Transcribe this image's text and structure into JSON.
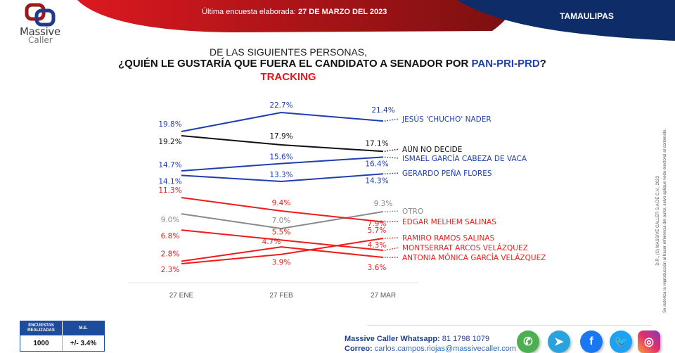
{
  "header": {
    "brand_line1": "Massive",
    "brand_line2": "Caller",
    "date_label": "Última encuesta elaborada:",
    "date_value": "27 DE MARZO DEL 2023",
    "state": "TAMAULIPAS"
  },
  "title": {
    "line1": "DE LAS SIGUIENTES  PERSONAS,",
    "line2": "¿QUIÉN LE GUSTARÍA QUE FUERA EL CANDIDATO  A SENADOR POR ",
    "party": "PAN-PRI-PRD",
    "qmark": "?",
    "line3": "TRACKING"
  },
  "colors": {
    "blue": "#1f3fb0",
    "black": "#111111",
    "gray": "#8a8a8a",
    "red": "#f01c1c",
    "banner_red": "#c8141c",
    "banner_blue": "#0e2d68"
  },
  "chart_data": {
    "type": "line",
    "title": "TRACKING",
    "categories": [
      "27 ENE",
      "27 FEB",
      "27 MAR"
    ],
    "ylabel": "",
    "xlabel": "",
    "ylim": [
      0,
      25
    ],
    "grid": false,
    "legend": "right (line-end labels)",
    "series": [
      {
        "name": "JESÚS 'CHUCHO' NADER",
        "color": "blue",
        "values": [
          19.8,
          22.7,
          21.4
        ],
        "labels": [
          "19.8%",
          "22.7%",
          "21.4%"
        ]
      },
      {
        "name": "AÚN NO DECIDE",
        "color": "black",
        "values": [
          19.2,
          17.9,
          17.1
        ],
        "labels": [
          "19.2%",
          "17.9%",
          "17.1%"
        ]
      },
      {
        "name": "ISMAEL GARCÍA CABEZA DE VACA",
        "color": "blue",
        "values": [
          14.7,
          15.6,
          16.4
        ],
        "labels": [
          "14.7%",
          "15.6%",
          "16.4%"
        ]
      },
      {
        "name": "GERARDO PEÑA FLORES",
        "color": "blue",
        "values": [
          14.1,
          13.3,
          14.3
        ],
        "labels": [
          "14.1%",
          "13.3%",
          "14.3%"
        ]
      },
      {
        "name": "OTRO",
        "color": "gray",
        "values": [
          9.0,
          7.0,
          9.3
        ],
        "labels": [
          "9.0%",
          "7.0%",
          "9.3%"
        ]
      },
      {
        "name": "EDGAR MELHEM SALINAS",
        "color": "red",
        "values": [
          11.3,
          9.4,
          7.9
        ],
        "labels": [
          "11.3%",
          "9.4%",
          "7.9%"
        ]
      },
      {
        "name": "RAMIRO RAMOS SALINAS",
        "color": "red",
        "values": [
          2.3,
          3.9,
          5.7
        ],
        "labels": [
          "2.3%",
          "3.9%",
          "5.7%"
        ]
      },
      {
        "name": "MONTSERRAT ARCOS VELÁZQUEZ",
        "color": "red",
        "values": [
          6.8,
          5.5,
          4.3
        ],
        "labels": [
          "6.8%",
          "5.5%",
          "4.3%"
        ]
      },
      {
        "name": "ANTONIA MÓNICA GARCÍA VELÁZQUEZ",
        "color": "red",
        "values": [
          2.8,
          4.7,
          3.6
        ],
        "labels": [
          "2.8%",
          "4.7%",
          "3.6%"
        ]
      }
    ]
  },
  "side_note": {
    "line1": "D.R., (C) MASSIVE CALLER S.A DE C.V., 2023",
    "line2": "Se autoriza la reproducción al hacer referencia del autor, salvo aplique veda electoral al contenido."
  },
  "stats": {
    "col1_header": "ENCUESTAS REALIZADAS",
    "col2_header": "M.E.",
    "col1_value": "1000",
    "col2_value": "+/- 3.4%"
  },
  "contact": {
    "whatsapp_label": "Massive Caller Whatsapp:",
    "whatsapp_value": "81 1798  1079",
    "email_label": "Correo:",
    "email_value": "carlos.campos.riojas@massivecaller.com"
  },
  "social": [
    {
      "name": "whatsapp-icon",
      "color": "#4caf50",
      "glyph": "✆"
    },
    {
      "name": "telegram-icon",
      "color": "#2aa3dc",
      "glyph": "➤"
    },
    {
      "name": "facebook-icon",
      "color": "#1877f2",
      "glyph": "f"
    },
    {
      "name": "twitter-icon",
      "color": "#1da1f2",
      "glyph": "🐦"
    },
    {
      "name": "instagram-icon",
      "color": "#d6249f",
      "glyph": "◎"
    }
  ]
}
